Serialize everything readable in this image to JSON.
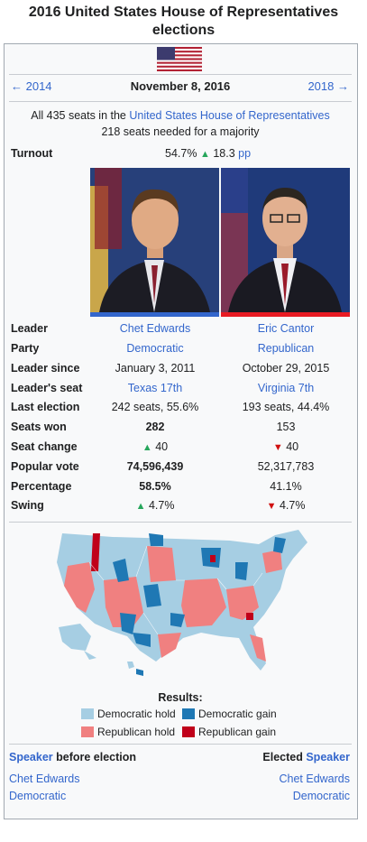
{
  "title": "2016 United States House of Representatives elections",
  "title_line1": "2016 United States House of Representatives",
  "title_line2": "elections",
  "nav": {
    "prev": "← 2014",
    "date": "November 8, 2016",
    "next": "2018 →"
  },
  "summary": {
    "line1_pre": "All 435 seats in the ",
    "line1_link": "United States House of Representatives",
    "line2": "218 seats needed for a majority"
  },
  "turnout": {
    "label": "Turnout",
    "value": "54.7%",
    "change": "18.3",
    "unit": "pp"
  },
  "rows": [
    {
      "label": "Leader",
      "left": "Chet Edwards",
      "right": "Eric Cantor",
      "link": true
    },
    {
      "label": "Party",
      "left": "Democratic",
      "right": "Republican",
      "link": true
    },
    {
      "label": "Leader since",
      "left": "January 3, 2011",
      "right": "October 29, 2015"
    },
    {
      "label": "Leader's seat",
      "left": "Texas 17th",
      "right": "Virginia 7th",
      "link": true
    },
    {
      "label": "Last election",
      "left": "242 seats, 55.6%",
      "right": "193 seats, 44.4%"
    },
    {
      "label": "Seats won",
      "left": "282",
      "right": "153"
    },
    {
      "label": "Seat change",
      "left": "40",
      "right": "40"
    },
    {
      "label": "Popular vote",
      "left": "74,596,439",
      "right": "52,317,783"
    },
    {
      "label": "Percentage",
      "left": "58.5%",
      "right": "41.1%"
    },
    {
      "label": "Swing",
      "left": "4.7%",
      "right": "4.7%"
    }
  ],
  "colors": {
    "dem": "#3366cc",
    "rep": "#e81b23",
    "dem_hold": "#a6cee3",
    "dem_gain": "#1f78b4",
    "rep_hold": "#f08080",
    "rep_gain": "#c0001a"
  },
  "legend": {
    "title": "Results:",
    "items": [
      "Democratic hold",
      "Democratic gain",
      "Republican hold",
      "Republican gain"
    ]
  },
  "speaker": {
    "before_link": "Speaker",
    "before_text": " before election",
    "elected_text": "Elected ",
    "elected_link": "Speaker",
    "left_name": "Chet Edwards",
    "left_party": "Democratic",
    "right_name": "Chet Edwards",
    "right_party": "Democratic"
  }
}
